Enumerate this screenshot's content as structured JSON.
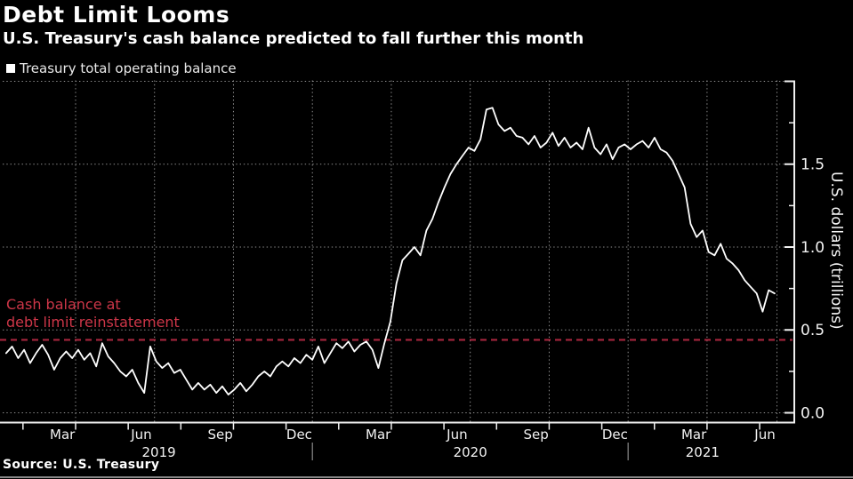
{
  "header": {
    "title": "Debt Limit Looms",
    "subtitle": "U.S. Treasury's cash balance predicted to fall further this month"
  },
  "legend": {
    "marker": "white-square-icon",
    "label": "Treasury total operating balance"
  },
  "annotation": {
    "line1": "Cash balance at",
    "line2": "debt limit reinstatement"
  },
  "source": {
    "text": "Source: U.S. Treasury"
  },
  "colors": {
    "background": "#000000",
    "line": "#ffffff",
    "reference_line": "#a7263e",
    "annotation_text": "#cd3648",
    "grid": "#a0a0a0",
    "axis": "#f0f0f0",
    "tick_label": "#f2f2f2"
  },
  "chart_data": {
    "type": "line",
    "title": "Debt Limit Looms",
    "subtitle": "U.S. Treasury's cash balance predicted to fall further this month",
    "ylabel": "U.S. dollars (trillions)",
    "xlabel": "",
    "ylim": [
      0,
      2.0
    ],
    "grid": "dotted",
    "legend_position": "top-left",
    "series": [
      {
        "name": "Treasury total operating balance",
        "color": "#ffffff",
        "x_unit": "months since 2019-01-01",
        "x_start": 0.36,
        "x_step": 0.2282,
        "values": [
          0.36,
          0.4,
          0.33,
          0.38,
          0.3,
          0.36,
          0.41,
          0.35,
          0.26,
          0.33,
          0.37,
          0.33,
          0.38,
          0.32,
          0.36,
          0.28,
          0.42,
          0.34,
          0.3,
          0.25,
          0.22,
          0.26,
          0.18,
          0.12,
          0.4,
          0.31,
          0.27,
          0.3,
          0.24,
          0.26,
          0.2,
          0.14,
          0.18,
          0.14,
          0.17,
          0.12,
          0.16,
          0.11,
          0.14,
          0.18,
          0.13,
          0.17,
          0.22,
          0.25,
          0.22,
          0.28,
          0.31,
          0.28,
          0.33,
          0.3,
          0.35,
          0.32,
          0.4,
          0.3,
          0.36,
          0.42,
          0.39,
          0.43,
          0.37,
          0.41,
          0.43,
          0.38,
          0.27,
          0.42,
          0.55,
          0.78,
          0.92,
          0.96,
          1.0,
          0.95,
          1.1,
          1.17,
          1.27,
          1.36,
          1.44,
          1.5,
          1.55,
          1.6,
          1.58,
          1.65,
          1.83,
          1.84,
          1.74,
          1.7,
          1.72,
          1.67,
          1.66,
          1.62,
          1.67,
          1.6,
          1.63,
          1.69,
          1.61,
          1.66,
          1.6,
          1.63,
          1.59,
          1.72,
          1.6,
          1.56,
          1.62,
          1.53,
          1.6,
          1.62,
          1.59,
          1.62,
          1.64,
          1.6,
          1.66,
          1.59,
          1.57,
          1.52,
          1.44,
          1.36,
          1.14,
          1.06,
          1.1,
          0.97,
          0.95,
          1.02,
          0.93,
          0.9,
          0.86,
          0.8,
          0.76,
          0.72,
          0.61,
          0.74,
          0.72
        ]
      }
    ],
    "reference_line": {
      "value": 0.44,
      "style": "dashed",
      "color": "#a7263e",
      "label": "Cash balance at debt limit reinstatement"
    },
    "y_ticks": [
      {
        "value": 0.0,
        "label": "0.0"
      },
      {
        "value": 0.5,
        "label": "0.5"
      },
      {
        "value": 1.0,
        "label": "1.0"
      },
      {
        "value": 1.5,
        "label": "1.5"
      },
      {
        "value": 2.0,
        "label": ""
      }
    ],
    "y_minor_ticks": [
      0.25,
      0.75,
      1.25,
      1.75
    ],
    "x_ticks": {
      "tick_months": [
        1,
        3,
        5,
        7,
        9,
        11,
        13,
        15,
        17,
        19,
        21,
        23,
        25,
        27,
        29
      ],
      "gridline_months": [
        3,
        6,
        9,
        12,
        15,
        18,
        21,
        24,
        27
      ],
      "label_months": [
        2,
        5,
        8,
        11,
        14,
        17,
        20,
        23,
        26,
        29
      ],
      "month_labels": [
        "Mar",
        "Jun",
        "Sep",
        "Dec",
        "Mar",
        "Jun",
        "Sep",
        "Dec",
        "Mar",
        "Jun"
      ],
      "year_labels": [
        "2019",
        "2020",
        "2021"
      ]
    }
  }
}
